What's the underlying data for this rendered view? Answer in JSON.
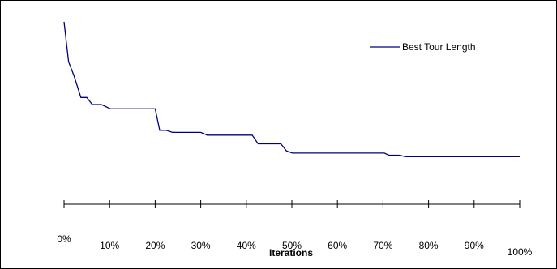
{
  "chart_data": {
    "type": "line",
    "title": "",
    "xlabel": "Iterations",
    "ylabel": "",
    "x_unit": "%",
    "xlim": [
      0,
      100
    ],
    "grid": false,
    "legend_position": "top-right",
    "series": [
      {
        "name": "Best Tour Length",
        "color": "#000080",
        "points": [
          [
            0,
            0.0
          ],
          [
            1,
            0.259
          ],
          [
            2.2,
            0.352
          ],
          [
            3.7,
            0.491
          ],
          [
            5,
            0.491
          ],
          [
            6.2,
            0.537
          ],
          [
            8.2,
            0.537
          ],
          [
            10.2,
            0.565
          ],
          [
            15,
            0.565
          ],
          [
            20,
            0.565
          ],
          [
            21,
            0.704
          ],
          [
            22.4,
            0.704
          ],
          [
            23.8,
            0.718
          ],
          [
            26,
            0.718
          ],
          [
            30,
            0.718
          ],
          [
            31.4,
            0.736
          ],
          [
            37,
            0.736
          ],
          [
            41.3,
            0.736
          ],
          [
            42.6,
            0.792
          ],
          [
            47.6,
            0.792
          ],
          [
            48.8,
            0.838
          ],
          [
            50.1,
            0.852
          ],
          [
            60,
            0.852
          ],
          [
            70.3,
            0.852
          ],
          [
            71.3,
            0.866
          ],
          [
            73.5,
            0.866
          ],
          [
            75,
            0.875
          ],
          [
            85,
            0.875
          ],
          [
            100,
            0.875
          ]
        ]
      }
    ],
    "x_ticks": [
      "0%",
      "10%",
      "20%",
      "30%",
      "40%",
      "50%",
      "60%",
      "70%",
      "80%",
      "90%",
      "100%"
    ]
  }
}
